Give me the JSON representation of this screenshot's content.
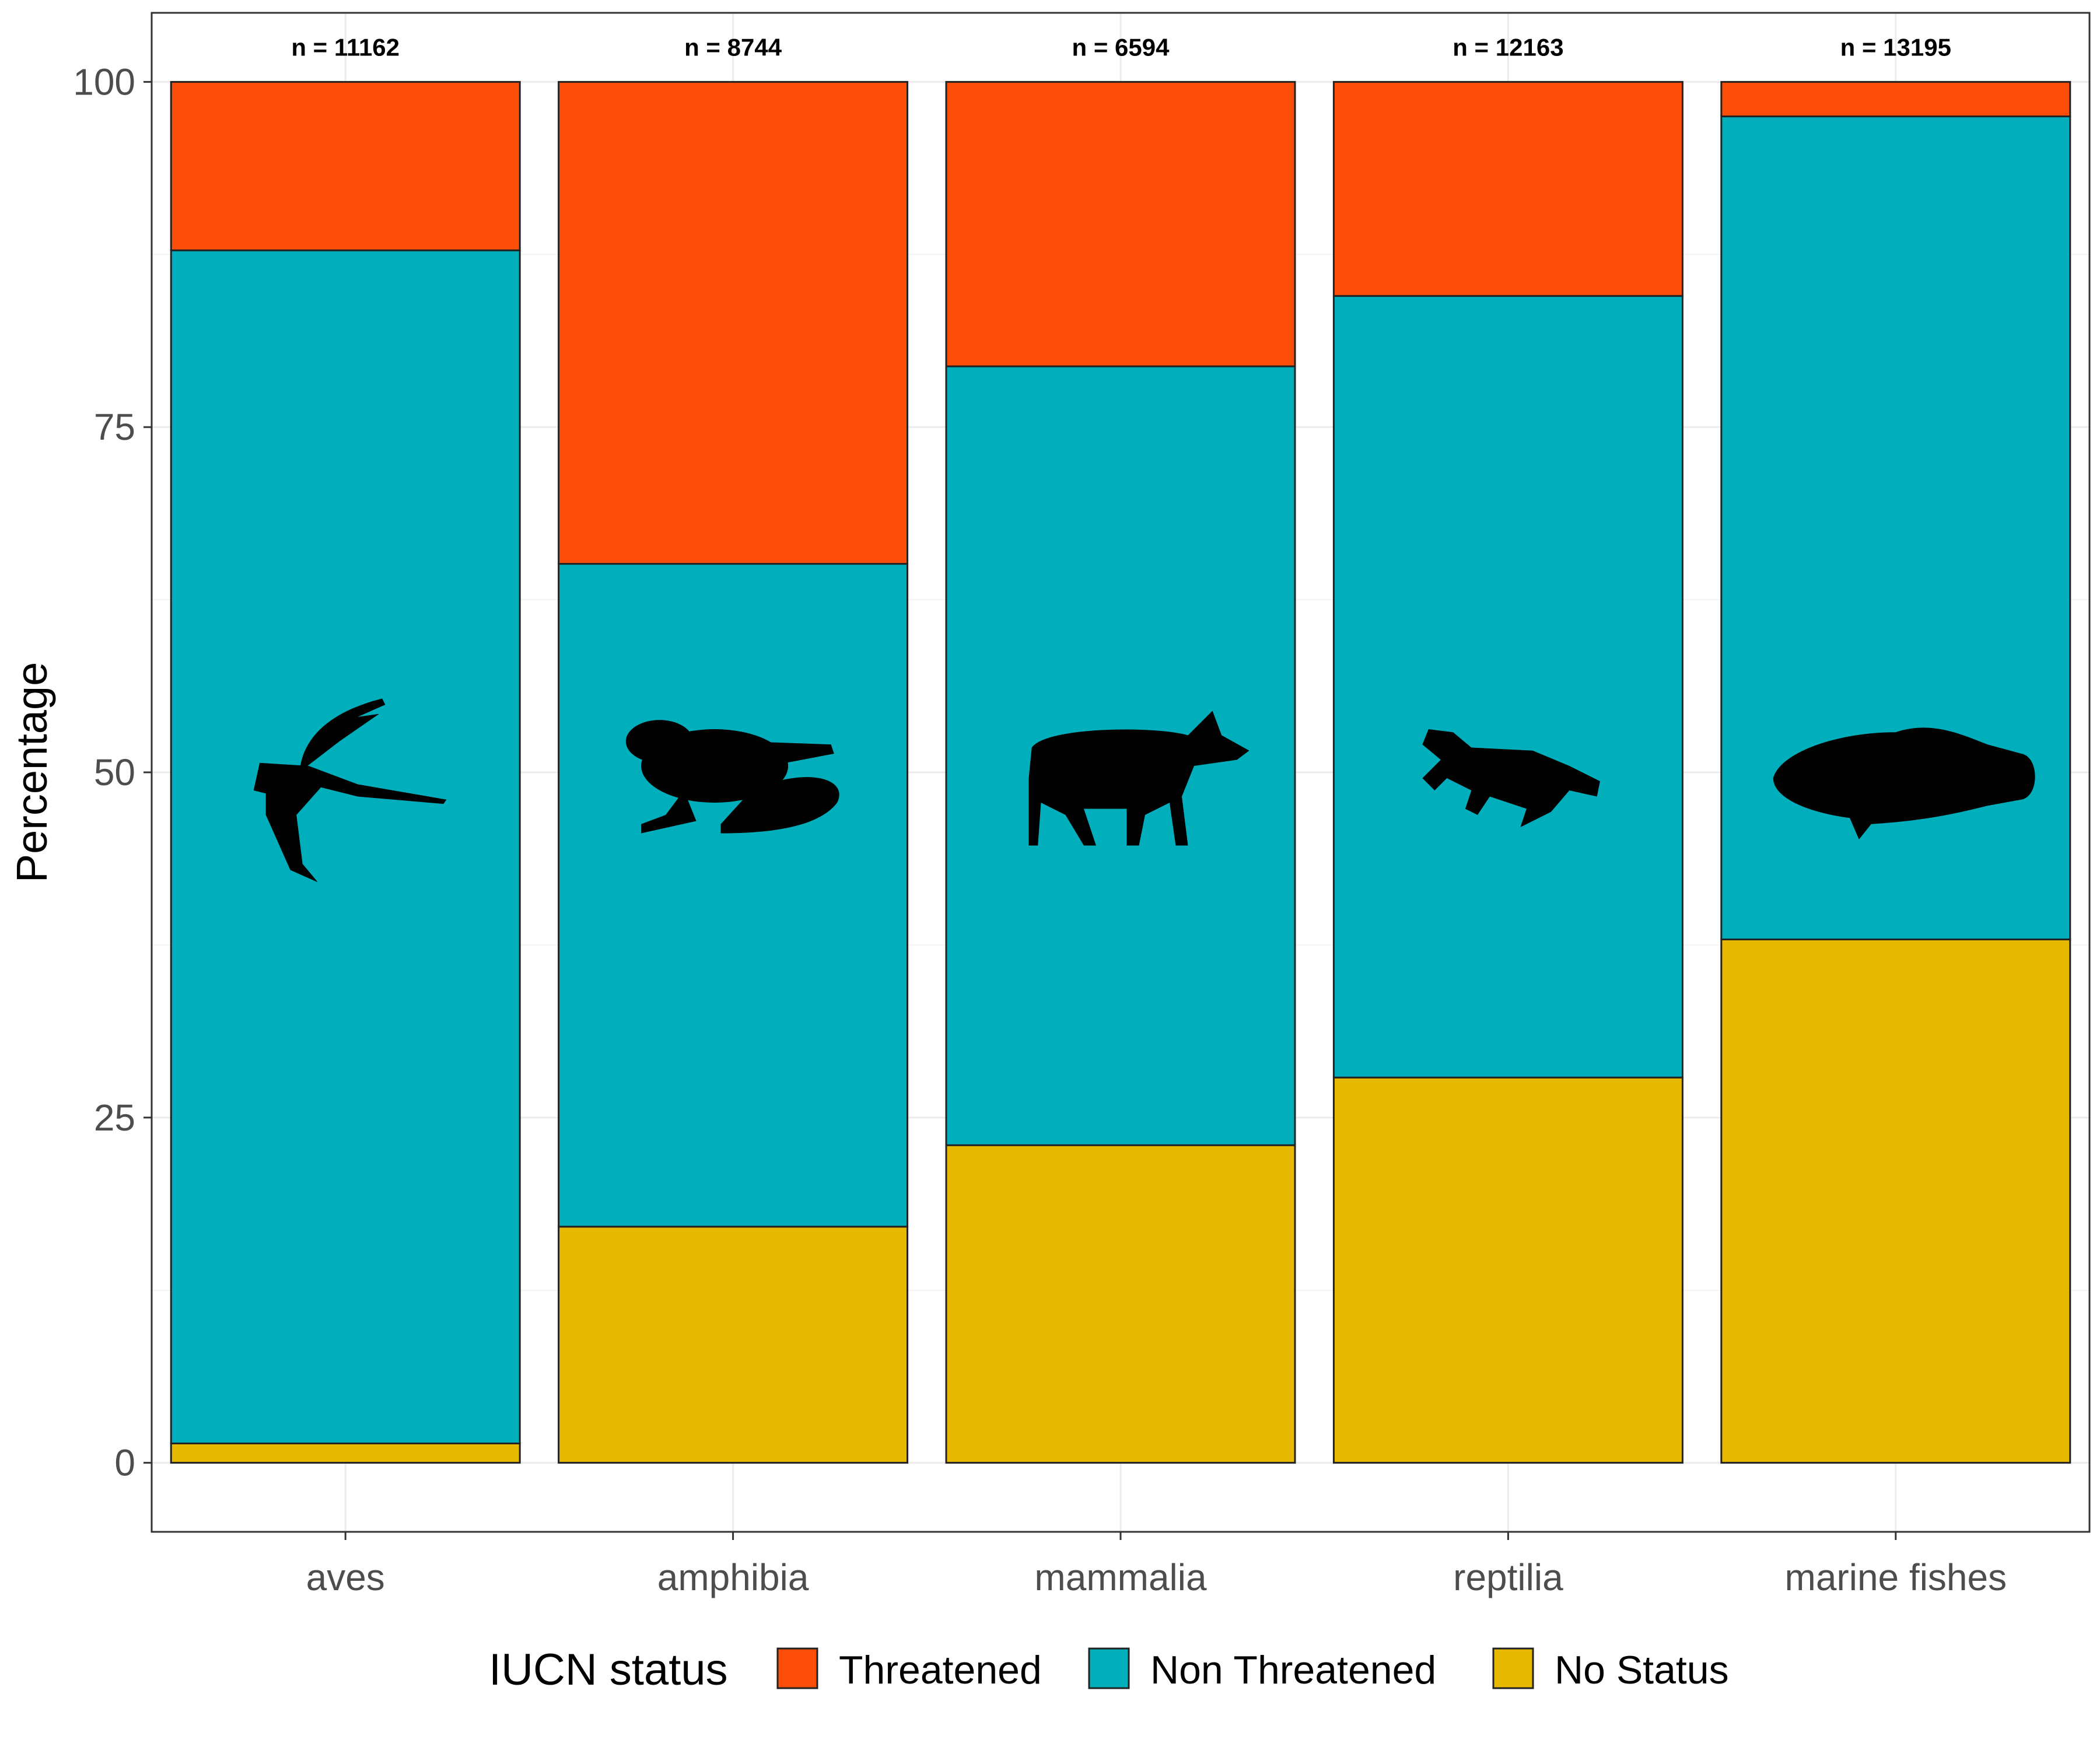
{
  "chart_data": {
    "type": "bar",
    "stacked": true,
    "categories": [
      "aves",
      "amphibia",
      "mammalia",
      "reptilia",
      "marine fishes"
    ],
    "series": [
      {
        "name": "No Status",
        "values": [
          1.4,
          17.1,
          23.0,
          27.9,
          37.9
        ]
      },
      {
        "name": "Non Threatened",
        "values": [
          86.4,
          48.0,
          56.4,
          56.6,
          59.6
        ]
      },
      {
        "name": "Threatened",
        "values": [
          12.2,
          34.9,
          20.6,
          15.5,
          2.5
        ]
      }
    ],
    "colors": {
      "Threatened": "#FC4E08",
      "Non Threatened": "#00AFBB",
      "No Status": "#E7B800"
    },
    "sample_labels": [
      "n = 11162",
      "n = 8744",
      "n = 6594",
      "n = 12163",
      "n = 13195"
    ],
    "silhouettes": [
      "bird-silhouette-icon",
      "frog-silhouette-icon",
      "wolf-silhouette-icon",
      "lizard-silhouette-icon",
      "fish-silhouette-icon"
    ],
    "ylabel": "Percentage",
    "xlabel": "",
    "ylim": [
      -5,
      105
    ],
    "yticks": [
      0,
      25,
      50,
      75,
      100
    ],
    "grid": true,
    "legend": {
      "title": "IUCN status",
      "position": "bottom",
      "entries": [
        "Threatened",
        "Non Threatened",
        "No Status"
      ]
    }
  }
}
